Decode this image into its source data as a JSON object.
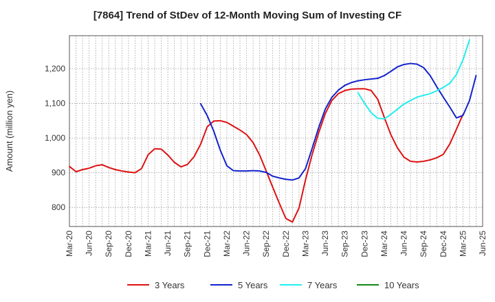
{
  "chart_data": {
    "type": "line",
    "title": "[7864]  Trend of StDev of 12-Month Moving Sum of Investing CF",
    "xlabel": "",
    "ylabel": "Amount (million yen)",
    "ylim": [
      745,
      1295
    ],
    "yticks": [
      800,
      900,
      1000,
      1100,
      1200
    ],
    "ytick_labels": [
      "800",
      "900",
      "1,000",
      "1,100",
      "1,200"
    ],
    "xtick_labels": [
      "Mar-20",
      "Jun-20",
      "Sep-20",
      "Dec-20",
      "Mar-21",
      "Jun-21",
      "Sep-21",
      "Dec-21",
      "Mar-22",
      "Jun-22",
      "Sep-22",
      "Dec-22",
      "Mar-23",
      "Jun-23",
      "Sep-23",
      "Dec-23",
      "Mar-24",
      "Jun-24",
      "Sep-24",
      "Dec-24",
      "Mar-25",
      "Jun-25"
    ],
    "x_start": "Mar-20",
    "x_end": "Jun-25",
    "grid": true,
    "legend_position": "bottom",
    "series": [
      {
        "name": "3 Years",
        "color": "#dd1111",
        "start": "Mar-20",
        "values": [
          918,
          903,
          909,
          913,
          920,
          923,
          915,
          909,
          905,
          902,
          900,
          912,
          952,
          969,
          968,
          951,
          930,
          917,
          924,
          946,
          982,
          1032,
          1049,
          1050,
          1045,
          1034,
          1023,
          1010,
          987,
          951,
          905,
          858,
          812,
          768,
          758,
          798,
          880,
          952,
          1015,
          1070,
          1108,
          1128,
          1137,
          1141,
          1142,
          1142,
          1137,
          1112,
          1060,
          1010,
          972,
          945,
          933,
          931,
          933,
          937,
          943,
          953,
          983,
          1025,
          1068
        ]
      },
      {
        "name": "5 Years",
        "color": "#1122cc",
        "start": "Nov-21",
        "values": [
          1099,
          1065,
          1020,
          965,
          920,
          906,
          905,
          905,
          906,
          905,
          901,
          890,
          885,
          881,
          879,
          885,
          912,
          970,
          1030,
          1083,
          1117,
          1138,
          1152,
          1160,
          1165,
          1168,
          1170,
          1172,
          1180,
          1192,
          1205,
          1212,
          1215,
          1213,
          1203,
          1180,
          1148,
          1118,
          1089,
          1058,
          1065,
          1108,
          1180
        ]
      },
      {
        "name": "7 Years",
        "color": "#22eeee",
        "start": "Nov-23",
        "values": [
          1130,
          1100,
          1073,
          1057,
          1055,
          1068,
          1083,
          1098,
          1108,
          1118,
          1123,
          1128,
          1136,
          1146,
          1158,
          1183,
          1225,
          1283
        ]
      },
      {
        "name": "10 Years",
        "color": "#118811",
        "start": "",
        "values": []
      }
    ]
  }
}
